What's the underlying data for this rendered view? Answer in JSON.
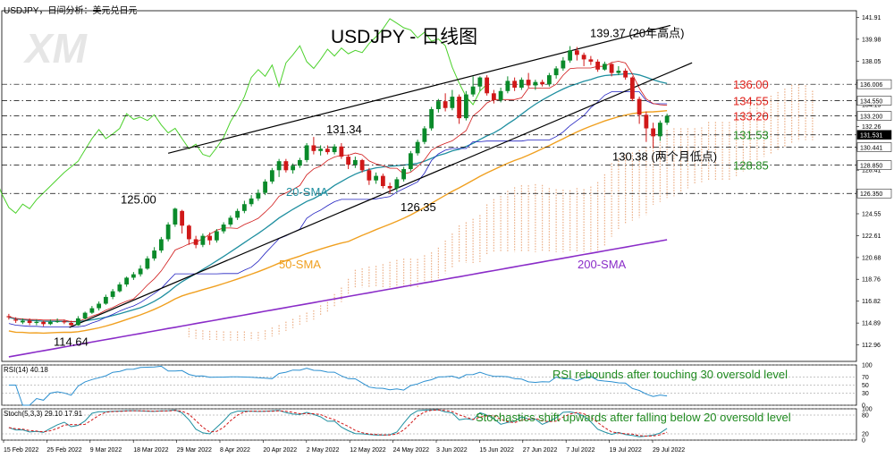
{
  "header": {
    "symbol_line": "USDJPY，日间分析：美元兑日元"
  },
  "watermark": "XM",
  "colors": {
    "bull": "#0a8a2a",
    "bear": "#d01818",
    "sma20": "#1f8fa0",
    "sma50": "#f0a020",
    "sma200": "#8a2cc8",
    "stoch_k": "#1f8fa0",
    "stoch_d": "#d01818",
    "chikou": "#4cd12c",
    "kijun": "#2020c0",
    "tenkan": "#d01818",
    "cloud": "#e8a070",
    "trend": "#000000",
    "res": "#e0201a",
    "sup": "#1f8a1f"
  },
  "chart_data": {
    "type": "candlestick",
    "title": "USDJPY  - 日线图",
    "x_tick_labels": [
      "15 Feb 2022",
      "25 Feb 2022",
      "9 Mar 2022",
      "18 Mar 2022",
      "29 Mar 2022",
      "8 Apr 2022",
      "20 Apr 2022",
      "2 May 2022",
      "12 May 2022",
      "24 May 2022",
      "3 Jun 2022",
      "15 Jun 2022",
      "27 Jun 2022",
      "7 Jul 2022",
      "19 Jul 2022",
      "29 Jul 2022"
    ],
    "y_ticks": [
      112.96,
      114.89,
      116.82,
      118.76,
      120.68,
      122.61,
      124.55,
      126.47,
      128.41,
      130.33,
      132.26,
      134.19,
      136.12,
      138.05,
      139.98,
      141.91
    ],
    "ylim": [
      111.5,
      142.5
    ],
    "price_scale_marks": [
      {
        "value": 136.006,
        "label": "136.006",
        "bg": "#ffffff",
        "fg": "#000000"
      },
      {
        "value": 134.55,
        "label": "134.550",
        "bg": "#ffffff",
        "fg": "#000000"
      },
      {
        "value": 133.2,
        "label": "133.200",
        "bg": "#ffffff",
        "fg": "#000000"
      },
      {
        "value": 131.531,
        "label": "131.531",
        "bg": "#000000",
        "fg": "#ffffff"
      },
      {
        "value": 130.441,
        "label": "130.441",
        "bg": "#ffffff",
        "fg": "#000000"
      },
      {
        "value": 128.85,
        "label": "128.850",
        "bg": "#ffffff",
        "fg": "#000000"
      },
      {
        "value": 126.35,
        "label": "126.350",
        "bg": "#ffffff",
        "fg": "#000000"
      }
    ],
    "levels": [
      {
        "value": 136.0,
        "label": "136.00",
        "kind": "resistance"
      },
      {
        "value": 134.55,
        "label": "134.55",
        "kind": "resistance"
      },
      {
        "value": 133.2,
        "label": "133.20",
        "kind": "resistance"
      },
      {
        "value": 131.53,
        "label": "131.53",
        "kind": "support"
      },
      {
        "value": 130.44,
        "label": "",
        "kind": "support"
      },
      {
        "value": 128.85,
        "label": "128.85",
        "kind": "support"
      },
      {
        "value": 126.35,
        "label": "",
        "kind": "support"
      }
    ],
    "annotations": [
      {
        "text": "139.37 (20年高点)",
        "x": 0.69,
        "value": 139.37
      },
      {
        "text": "131.34",
        "x": 0.395,
        "value": 131.34
      },
      {
        "text": "125.00",
        "x": 0.165,
        "value": 125.0
      },
      {
        "text": "126.35",
        "x": 0.478,
        "value": 126.35
      },
      {
        "text": "114.64",
        "x": 0.09,
        "value": 114.64
      },
      {
        "text": "130.38 (两个月低点)",
        "x": 0.715,
        "value": 130.38
      }
    ],
    "series_labels": [
      {
        "text": "20-SMA",
        "color": "#1f8fa0"
      },
      {
        "text": "50-SMA",
        "color": "#f0a020"
      },
      {
        "text": "200-SMA",
        "color": "#8a2cc8"
      }
    ],
    "ohlc": [
      [
        115.5,
        115.4,
        115.7,
        115.2
      ],
      [
        115.2,
        115.1,
        115.4,
        114.9
      ],
      [
        114.95,
        115.1,
        115.3,
        114.8
      ],
      [
        115.1,
        114.9,
        115.3,
        114.7
      ],
      [
        114.9,
        115.0,
        115.2,
        114.7
      ],
      [
        115.0,
        114.8,
        115.1,
        114.6
      ],
      [
        114.8,
        115.0,
        115.2,
        114.7
      ],
      [
        115.0,
        115.05,
        115.3,
        114.9
      ],
      [
        115.05,
        114.95,
        115.2,
        114.8
      ],
      [
        114.9,
        114.7,
        115.1,
        114.64
      ],
      [
        114.7,
        115.3,
        115.5,
        114.65
      ],
      [
        115.3,
        115.8,
        115.9,
        115.2
      ],
      [
        115.8,
        116.2,
        116.4,
        115.7
      ],
      [
        116.2,
        116.6,
        116.8,
        116.0
      ],
      [
        116.6,
        117.2,
        117.4,
        116.5
      ],
      [
        117.2,
        117.7,
        117.9,
        117.0
      ],
      [
        117.7,
        118.3,
        118.5,
        117.6
      ],
      [
        118.3,
        118.9,
        119.0,
        118.1
      ],
      [
        118.9,
        119.2,
        119.4,
        118.7
      ],
      [
        119.2,
        119.7,
        120.0,
        119.0
      ],
      [
        119.7,
        120.6,
        120.8,
        119.6
      ],
      [
        120.6,
        121.3,
        121.6,
        120.4
      ],
      [
        121.3,
        122.3,
        122.5,
        121.1
      ],
      [
        122.3,
        123.6,
        123.8,
        122.1
      ],
      [
        123.6,
        125.0,
        125.09,
        123.4
      ],
      [
        124.8,
        123.5,
        124.9,
        122.8
      ],
      [
        123.5,
        122.3,
        123.6,
        121.8
      ],
      [
        122.3,
        121.8,
        122.6,
        121.5
      ],
      [
        121.8,
        122.6,
        122.8,
        121.6
      ],
      [
        122.6,
        122.2,
        122.9,
        121.8
      ],
      [
        122.2,
        123.0,
        123.2,
        122.0
      ],
      [
        123.0,
        123.6,
        123.8,
        122.8
      ],
      [
        123.6,
        124.2,
        124.4,
        123.4
      ],
      [
        124.2,
        124.8,
        125.0,
        124.0
      ],
      [
        124.8,
        125.4,
        125.7,
        124.6
      ],
      [
        125.4,
        125.9,
        126.2,
        125.2
      ],
      [
        125.9,
        126.4,
        126.7,
        125.7
      ],
      [
        126.4,
        127.4,
        127.6,
        126.2
      ],
      [
        127.4,
        128.4,
        128.6,
        127.2
      ],
      [
        128.4,
        129.2,
        129.4,
        127.8
      ],
      [
        129.2,
        128.4,
        129.4,
        128.2
      ],
      [
        128.4,
        128.8,
        129.0,
        128.1
      ],
      [
        128.8,
        129.3,
        129.5,
        128.6
      ],
      [
        129.3,
        130.6,
        130.8,
        129.1
      ],
      [
        130.6,
        130.1,
        131.34,
        129.8
      ],
      [
        130.1,
        130.3,
        130.6,
        129.7
      ],
      [
        130.3,
        130.0,
        130.6,
        129.8
      ],
      [
        130.0,
        130.5,
        130.7,
        129.8
      ],
      [
        130.5,
        129.6,
        130.8,
        129.4
      ],
      [
        129.6,
        128.9,
        129.8,
        128.5
      ],
      [
        128.9,
        129.3,
        129.6,
        128.6
      ],
      [
        129.3,
        128.4,
        129.4,
        128.2
      ],
      [
        128.4,
        127.5,
        128.6,
        127.1
      ],
      [
        127.5,
        127.9,
        128.2,
        127.2
      ],
      [
        127.9,
        127.0,
        128.1,
        126.8
      ],
      [
        127.0,
        126.8,
        127.3,
        126.35
      ],
      [
        126.8,
        127.6,
        127.8,
        126.5
      ],
      [
        127.6,
        128.5,
        128.7,
        127.4
      ],
      [
        128.5,
        129.9,
        130.1,
        128.3
      ],
      [
        129.9,
        130.9,
        131.1,
        129.7
      ],
      [
        130.9,
        132.1,
        132.3,
        130.7
      ],
      [
        132.1,
        133.8,
        134.0,
        131.9
      ],
      [
        133.8,
        134.5,
        134.7,
        133.5
      ],
      [
        134.5,
        133.9,
        135.2,
        133.6
      ],
      [
        133.9,
        134.9,
        135.5,
        133.7
      ],
      [
        134.9,
        133.0,
        135.1,
        132.5
      ],
      [
        133.0,
        135.1,
        135.4,
        132.8
      ],
      [
        135.1,
        135.8,
        136.7,
        134.9
      ],
      [
        135.8,
        136.6,
        136.7,
        135.4
      ],
      [
        136.6,
        135.2,
        136.8,
        135.0
      ],
      [
        135.2,
        134.6,
        135.5,
        134.3
      ],
      [
        134.6,
        135.4,
        135.7,
        134.4
      ],
      [
        135.4,
        136.3,
        136.7,
        135.2
      ],
      [
        136.3,
        135.7,
        136.6,
        135.4
      ],
      [
        135.7,
        136.4,
        136.6,
        135.5
      ],
      [
        136.4,
        135.9,
        137.0,
        135.7
      ],
      [
        135.9,
        136.2,
        136.4,
        135.5
      ],
      [
        136.2,
        136.0,
        136.4,
        135.8
      ],
      [
        136.0,
        136.8,
        137.0,
        135.8
      ],
      [
        136.8,
        137.4,
        137.6,
        136.5
      ],
      [
        137.4,
        138.1,
        138.4,
        137.2
      ],
      [
        138.1,
        139.0,
        139.37,
        137.9
      ],
      [
        139.0,
        138.6,
        139.3,
        138.1
      ],
      [
        138.6,
        138.2,
        138.8,
        137.6
      ],
      [
        138.2,
        138.0,
        138.5,
        137.7
      ],
      [
        138.0,
        137.3,
        138.2,
        137.1
      ],
      [
        137.3,
        137.8,
        138.0,
        137.2
      ],
      [
        137.8,
        137.0,
        137.9,
        136.7
      ],
      [
        137.0,
        137.2,
        137.6,
        136.8
      ],
      [
        137.2,
        136.6,
        137.4,
        136.4
      ],
      [
        136.6,
        134.7,
        136.7,
        134.5
      ],
      [
        134.7,
        133.3,
        134.9,
        132.5
      ],
      [
        133.3,
        132.1,
        133.6,
        130.9
      ],
      [
        132.1,
        131.4,
        132.6,
        130.38
      ],
      [
        131.4,
        132.6,
        132.8,
        131.0
      ],
      [
        132.6,
        133.2,
        133.4,
        132.4
      ]
    ],
    "indicators": {
      "rsi": {
        "label": "RSI(14) 40.18",
        "value": 40.18,
        "note": "RSI rebounds after touching 30 oversold level",
        "levels": [
          100,
          70,
          50,
          30,
          0
        ]
      },
      "stoch": {
        "label": "Stoch(5,3,3) 29.10 17.91",
        "k": 29.1,
        "d": 17.91,
        "note": "Stochastics shift upwards after falling below 20 oversold level",
        "levels": [
          100,
          80,
          20,
          0
        ]
      }
    }
  }
}
